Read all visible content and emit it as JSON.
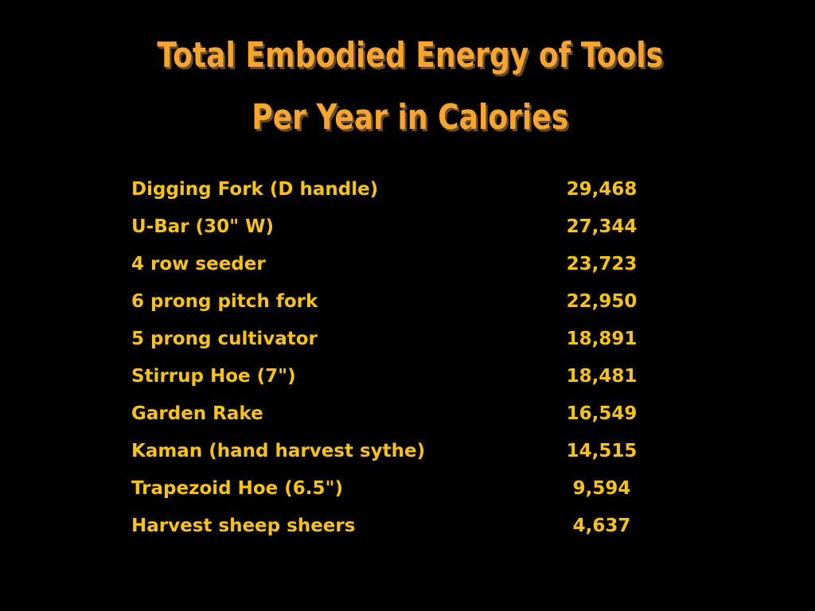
{
  "title": {
    "lines": [
      "Total Embodied Energy of Tools",
      "Per Year in Calories"
    ]
  },
  "table": {
    "rows": [
      [
        "Digging Fork (D handle)",
        "29,468"
      ],
      [
        "U-Bar (30\" W)",
        "27,344"
      ],
      [
        "4 row seeder",
        "23,723"
      ],
      [
        "6 prong pitch fork",
        "22,950"
      ],
      [
        "5 prong cultivator",
        "18,891"
      ],
      [
        "Stirrup Hoe (7\")",
        "18,481"
      ],
      [
        "Garden Rake",
        "16,549"
      ],
      [
        "Kaman (hand harvest sythe)",
        "14,515"
      ],
      [
        "Trapezoid Hoe (6.5\")",
        "9,594"
      ],
      [
        "Harvest sheep sheers",
        "4,637"
      ]
    ]
  }
}
